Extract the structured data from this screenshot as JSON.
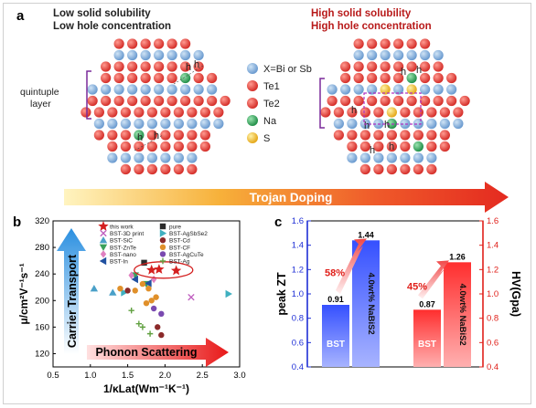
{
  "panel_a": {
    "label": "a",
    "left_title_1": "Low solid solubility",
    "left_title_2": "Low hole concentration",
    "right_title_1": "High solid solubility",
    "right_title_2": "High hole concentration",
    "layer_label_1": "quintuple",
    "layer_label_2": "layer",
    "hole_symbol": "h",
    "legend": [
      {
        "label": "X=Bi or Sb",
        "color": "#7aa9d8"
      },
      {
        "label": "Te1",
        "color": "#e04a42"
      },
      {
        "label": "Te2",
        "color": "#e04a42"
      },
      {
        "label": "Na",
        "color": "#3aa860"
      },
      {
        "label": "S",
        "color": "#f2c233"
      }
    ],
    "arrow_label": "Trojan Doping"
  },
  "panel_b": {
    "label": "b",
    "ylabel": "μ/cm²V⁻¹s⁻¹",
    "xlabel": "1/κLat(Wm⁻¹K⁻¹)",
    "arrow_up_label": "Carrier Transport",
    "arrow_right_label": "Phonon Scattering",
    "legend_left": [
      "this work",
      "BST-3D print",
      "BST-SiC",
      "BST-ZnTe",
      "BST-nano",
      "BST-In"
    ],
    "legend_right": [
      "pure",
      "BST-AgSbSe2",
      "BST-Cd",
      "BST-CF",
      "BST-AgCuTe",
      "BST-Ag"
    ]
  },
  "panel_c": {
    "label": "c",
    "ylabel_left": "peak ZT",
    "ylabel_right": "HV(Gpa)",
    "left_pct": "58%",
    "right_pct": "45%",
    "bar_label_base": "BST",
    "bar_label_doped": "4.0wt% NaBiS2"
  },
  "chart_data": [
    {
      "type": "scatter",
      "xlabel": "1/κLat(Wm⁻¹K⁻¹)",
      "ylabel": "μ/cm²V⁻¹s⁻¹",
      "xlim": [
        0.5,
        3.0
      ],
      "ylim": [
        100,
        320
      ],
      "x_ticks": [
        0.5,
        1.0,
        1.5,
        2.0,
        2.5,
        3.0
      ],
      "y_ticks": [
        120,
        160,
        200,
        240,
        280,
        320
      ],
      "series": [
        {
          "name": "this work",
          "color": "#d42020",
          "marker": "star",
          "x": [
            1.82,
            1.92,
            2.15
          ],
          "y": [
            246,
            247,
            245
          ]
        },
        {
          "name": "BST-3D print",
          "color": "#c060c0",
          "marker": "x",
          "x": [
            2.35
          ],
          "y": [
            205
          ]
        },
        {
          "name": "BST-SiC",
          "color": "#4aa0c8",
          "marker": "triangle",
          "x": [
            1.05,
            1.3
          ],
          "y": [
            218,
            212
          ]
        },
        {
          "name": "BST-ZnTe",
          "color": "#3aa05a",
          "marker": "triangle-down",
          "x": [
            1.6,
            1.75
          ],
          "y": [
            238,
            225
          ]
        },
        {
          "name": "BST-nano",
          "color": "#e080c0",
          "marker": "diamond",
          "x": [
            1.55,
            1.85
          ],
          "y": [
            238,
            232
          ]
        },
        {
          "name": "BST-In",
          "color": "#2050a0",
          "marker": "triangle-left",
          "x": [
            1.6,
            1.78
          ],
          "y": [
            232,
            226
          ]
        },
        {
          "name": "pure",
          "color": "#2b2b2b",
          "marker": "square",
          "x": [
            1.72
          ],
          "y": [
            257
          ]
        },
        {
          "name": "BST-AgSbSe2",
          "color": "#40b0c0",
          "marker": "triangle-right",
          "x": [
            1.45,
            2.85
          ],
          "y": [
            212,
            210
          ]
        },
        {
          "name": "BST-Cd",
          "color": "#8b2a2a",
          "marker": "circle",
          "x": [
            1.5,
            1.9,
            1.95
          ],
          "y": [
            215,
            160,
            148
          ]
        },
        {
          "name": "BST-CF",
          "color": "#e0902a",
          "marker": "circle",
          "x": [
            1.4,
            1.6,
            1.7,
            1.78,
            1.88,
            1.75,
            1.82
          ],
          "y": [
            218,
            215,
            225,
            218,
            205,
            196,
            200
          ]
        },
        {
          "name": "BST-AgCuTe",
          "color": "#7a4ab0",
          "marker": "circle",
          "x": [
            1.85,
            1.95
          ],
          "y": [
            188,
            180
          ]
        },
        {
          "name": "BST-Ag",
          "color": "#60a040",
          "marker": "plus",
          "x": [
            1.55,
            1.65,
            1.7,
            1.8
          ],
          "y": [
            185,
            165,
            160,
            150
          ]
        }
      ]
    },
    {
      "type": "bar",
      "title": "",
      "categories": [
        "BST",
        "4.0wt% NaBiS2"
      ],
      "series": [
        {
          "name": "peak ZT",
          "axis": "left",
          "values": [
            0.91,
            1.44
          ],
          "value_labels": [
            "0.91",
            "1.44"
          ],
          "color": "#2a4fe0"
        },
        {
          "name": "HV(Gpa)",
          "axis": "right",
          "values": [
            0.87,
            1.26
          ],
          "value_labels": [
            "0.87",
            "1.26"
          ],
          "color": "#e53a2a"
        }
      ],
      "ylim_left": [
        0.4,
        1.6
      ],
      "ylim_right": [
        0.4,
        1.6
      ],
      "y_ticks_left": [
        "0.4",
        "0.6",
        "0.8",
        "1.0",
        "1.2",
        "1.4",
        "1.6"
      ],
      "y_ticks_right": [
        "0.4",
        "0.6",
        "0.8",
        "1.0",
        "1.2",
        "1.4",
        "1.6"
      ],
      "left_axis_color": "#1f2fd6",
      "right_axis_color": "#e0201a"
    }
  ]
}
